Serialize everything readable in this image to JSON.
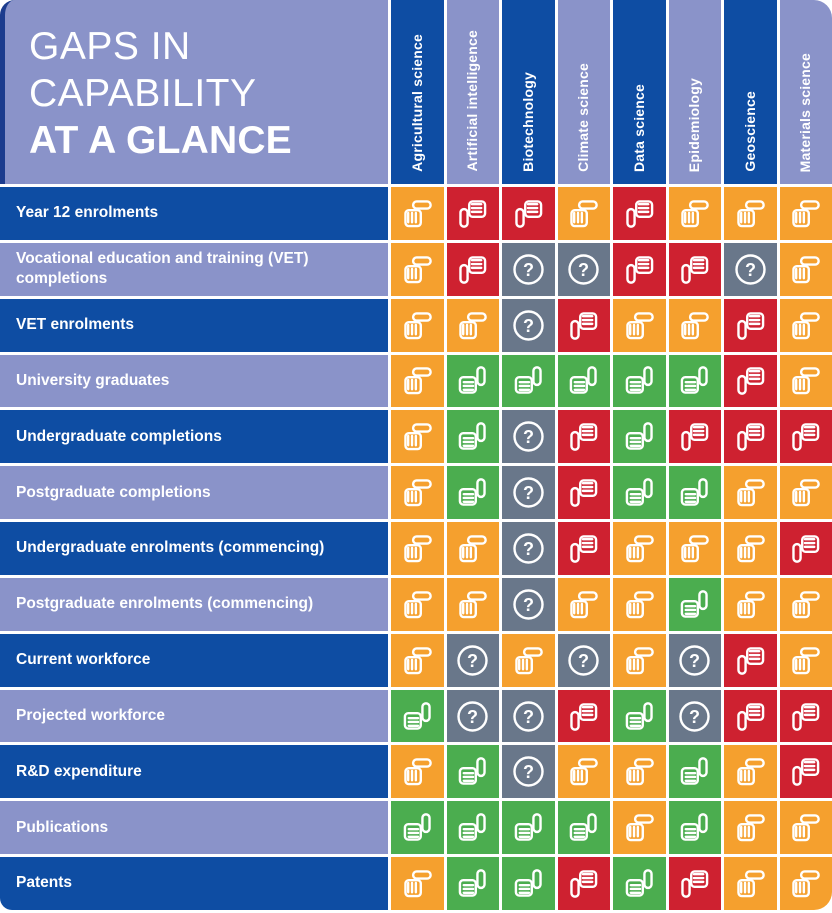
{
  "title": {
    "line1": "GAPS IN",
    "line2": "CAPABILITY",
    "line3": "AT A GLANCE"
  },
  "chart_data": {
    "type": "heatmap",
    "title": "GAPS IN CAPABILITY AT A GLANCE",
    "columns": [
      "Agricultural science",
      "Artificial intelligence",
      "Biotechnology",
      "Climate science",
      "Data science",
      "Epidemiology",
      "Geoscience",
      "Materials science"
    ],
    "rows": [
      "Year 12 enrolments",
      "Vocational education and training (VET) completions",
      "VET enrolments",
      "University graduates",
      "Undergraduate completions",
      "Postgraduate completions",
      "Undergraduate enrolments (commencing)",
      "Postgraduate enrolments (commencing)",
      "Current workforce",
      "Projected workforce",
      "R&D expenditure",
      "Publications",
      "Patents"
    ],
    "values": [
      [
        "neutral",
        "down",
        "down",
        "neutral",
        "down",
        "neutral",
        "neutral",
        "neutral"
      ],
      [
        "neutral",
        "down",
        "question",
        "question",
        "down",
        "down",
        "question",
        "neutral"
      ],
      [
        "neutral",
        "neutral",
        "question",
        "down",
        "neutral",
        "neutral",
        "down",
        "neutral"
      ],
      [
        "neutral",
        "up",
        "up",
        "up",
        "up",
        "up",
        "down",
        "neutral"
      ],
      [
        "neutral",
        "up",
        "question",
        "down",
        "up",
        "down",
        "down",
        "down"
      ],
      [
        "neutral",
        "up",
        "question",
        "down",
        "up",
        "up",
        "neutral",
        "neutral"
      ],
      [
        "neutral",
        "neutral",
        "question",
        "down",
        "neutral",
        "neutral",
        "neutral",
        "down"
      ],
      [
        "neutral",
        "neutral",
        "question",
        "neutral",
        "neutral",
        "up",
        "neutral",
        "neutral"
      ],
      [
        "neutral",
        "question",
        "neutral",
        "question",
        "neutral",
        "question",
        "down",
        "neutral"
      ],
      [
        "up",
        "question",
        "question",
        "down",
        "up",
        "question",
        "down",
        "down"
      ],
      [
        "neutral",
        "up",
        "question",
        "neutral",
        "neutral",
        "up",
        "neutral",
        "down"
      ],
      [
        "up",
        "up",
        "up",
        "up",
        "neutral",
        "up",
        "neutral",
        "neutral"
      ],
      [
        "neutral",
        "up",
        "up",
        "down",
        "up",
        "down",
        "neutral",
        "neutral"
      ]
    ],
    "value_legend": {
      "up": "green thumbs-up",
      "neutral": "orange sideways thumb",
      "down": "red thumbs-down",
      "question": "grey question mark"
    }
  },
  "icons": {
    "up": {
      "name": "thumb-up-icon",
      "color": "#4BAD4F"
    },
    "down": {
      "name": "thumb-down-icon",
      "color": "#CE2130"
    },
    "neutral": {
      "name": "thumb-sideways-icon",
      "color": "#F5A02E"
    },
    "question": {
      "name": "question-mark-icon",
      "color": "#69778A"
    }
  },
  "colors": {
    "dark_blue": "#0E4DA3",
    "light_purple": "#8A93C9",
    "navy_accent": "#1C3C8E",
    "icon_stroke": "#FFFFFF",
    "grid_background": "#FFFFFF"
  }
}
